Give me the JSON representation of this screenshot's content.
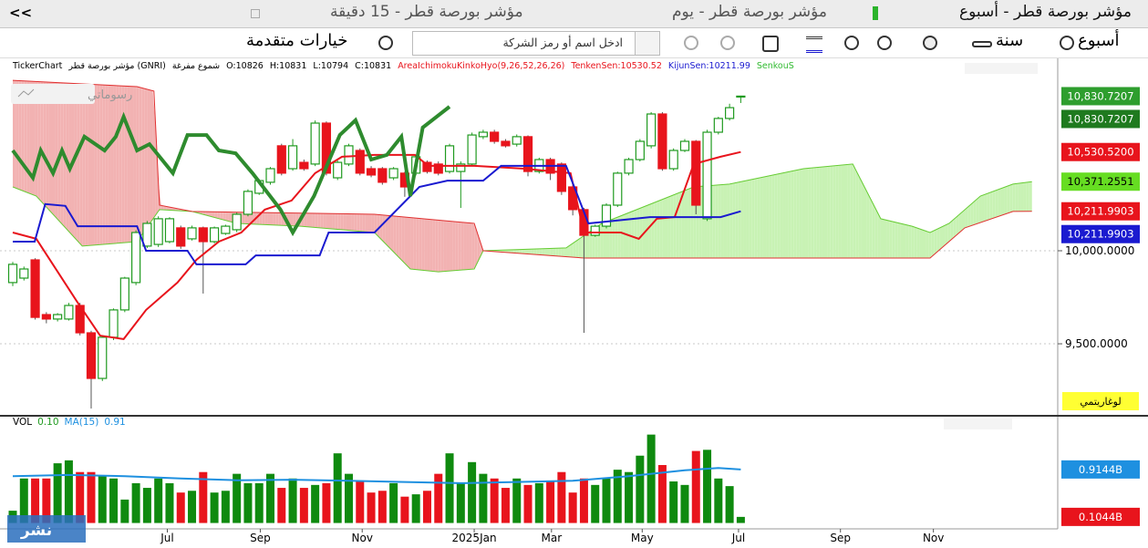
{
  "tabs": {
    "collapse": "<<",
    "items": [
      "مؤشر بورصة قطر - 15 دقيقة",
      "مؤشر بورصة قطر - يوم",
      "مؤشر بورصة قطر - أسبوع"
    ]
  },
  "toolbar": {
    "advanced": "خيارات متقدمة",
    "search_placeholder": "ادخل اسم أو رمز الشركة",
    "year": "سنة",
    "week": "أسبوع"
  },
  "watermark": "نشر",
  "chart_data": [
    {
      "type": "candlestick",
      "info": [
        {
          "text": "TickerChart",
          "color": "#000000"
        },
        {
          "text": "مؤشر بورصة قطر (GNRI)",
          "color": "#000000"
        },
        {
          "text": "شموع مفرغة",
          "color": "#000000"
        },
        {
          "text": "O:10826",
          "color": "#000000"
        },
        {
          "text": "H:10831",
          "color": "#000000"
        },
        {
          "text": "L:10794",
          "color": "#000000"
        },
        {
          "text": "C:10831",
          "color": "#000000"
        },
        {
          "text": "AreaIchimokuKinkoHyo(9,26,52,26,26)",
          "color": "#e8141c"
        },
        {
          "text": "TenkenSen:10530.52",
          "color": "#e8141c"
        },
        {
          "text": "KijunSen:10211.99",
          "color": "#1a1ad0"
        },
        {
          "text": "SenkouS",
          "color": "#33bb33"
        }
      ],
      "drawings_label": "رسوماتي",
      "scale_mode": "لوغاريتمي",
      "xlim": [
        -1.14,
        93.3
      ],
      "ylim": [
        9118,
        10931
      ],
      "xticks": [
        {
          "value": 13.8,
          "label": "Jul"
        },
        {
          "value": 22.1,
          "label": "Sep"
        },
        {
          "value": 31.2,
          "label": "Nov"
        },
        {
          "value": 41.2,
          "label": "2025Jan"
        },
        {
          "value": 48.1,
          "label": "Mar"
        },
        {
          "value": 56.2,
          "label": "May"
        },
        {
          "value": 64.8,
          "label": "Jul"
        },
        {
          "value": 73.9,
          "label": "Sep"
        },
        {
          "value": 82.2,
          "label": "Nov"
        }
      ],
      "yticks": [
        {
          "value": 10000,
          "label": "10,000.0000"
        },
        {
          "value": 9500,
          "label": "9,500.0000"
        }
      ],
      "grid": true,
      "up_color": "#1f9a1f",
      "down_color": "#e8141c",
      "open": [
        9829,
        9853,
        9951,
        9657,
        9633,
        9633,
        9706,
        9559,
        9314,
        9535,
        9682,
        9829,
        10025,
        10034,
        10049,
        10123,
        10064,
        10123,
        10049,
        10093,
        10113,
        10196,
        10309,
        10368,
        10564,
        10441,
        10475,
        10466,
        10686,
        10392,
        10466,
        10539,
        10441,
        10441,
        10392,
        10417,
        10417,
        10475,
        10466,
        10426,
        10426,
        10466,
        10613,
        10637,
        10588,
        10573,
        10613,
        10426,
        10490,
        10466,
        10343,
        10221,
        10083,
        10132,
        10245,
        10417,
        10490,
        10564,
        10735,
        10441,
        10539,
        10588,
        10172,
        10637,
        10711,
        10826
      ],
      "high": [
        9940,
        9915,
        9960,
        9670,
        9665,
        9720,
        9720,
        9570,
        9545,
        9690,
        9860,
        10110,
        10160,
        10185,
        10180,
        10135,
        10135,
        10130,
        10130,
        10140,
        10205,
        10330,
        10385,
        10450,
        10575,
        10600,
        10490,
        10700,
        10695,
        10485,
        10575,
        10550,
        10455,
        10450,
        10450,
        10425,
        10515,
        10485,
        10480,
        10575,
        10480,
        10635,
        10650,
        10650,
        10600,
        10625,
        10620,
        10500,
        10500,
        10475,
        10355,
        10230,
        10140,
        10255,
        10425,
        10500,
        10600,
        10745,
        10745,
        10550,
        10600,
        10595,
        10650,
        10720,
        10790,
        10831
      ],
      "low": [
        9810,
        9840,
        9630,
        9610,
        9620,
        9625,
        9545,
        9152,
        9300,
        9520,
        9670,
        9815,
        10015,
        10020,
        10040,
        10010,
        10055,
        9770,
        10040,
        10085,
        10100,
        10185,
        10300,
        10355,
        10405,
        10430,
        10430,
        10455,
        10405,
        10380,
        10455,
        10405,
        10395,
        10355,
        10380,
        10290,
        10405,
        10415,
        10405,
        10415,
        10230,
        10455,
        10600,
        10575,
        10555,
        10560,
        10400,
        10415,
        10380,
        10300,
        10190,
        9559,
        10075,
        10120,
        10235,
        10405,
        10480,
        10550,
        10430,
        10430,
        10530,
        10196,
        10160,
        10625,
        10700,
        10794
      ],
      "close": [
        9927,
        9902,
        9642,
        9633,
        9657,
        9706,
        9559,
        9314,
        9535,
        9682,
        9853,
        10098,
        10147,
        10172,
        10172,
        10025,
        10123,
        10049,
        10123,
        10132,
        10196,
        10319,
        10377,
        10441,
        10417,
        10564,
        10441,
        10686,
        10417,
        10475,
        10564,
        10417,
        10407,
        10368,
        10441,
        10343,
        10505,
        10426,
        10417,
        10564,
        10466,
        10622,
        10637,
        10588,
        10564,
        10613,
        10426,
        10490,
        10417,
        10319,
        10221,
        10083,
        10132,
        10245,
        10417,
        10490,
        10588,
        10735,
        10441,
        10539,
        10588,
        10245,
        10637,
        10711,
        10769,
        10831
      ],
      "cloud": {
        "up_color": "#c8f2b4",
        "down_color": "#f2b2b2"
      },
      "series": [
        {
          "color": "#66cc33",
          "width": 1,
          "x": [
            0,
            2.1,
            6.2,
            11.1,
            13.1,
            16,
            20,
            25.7,
            32.3,
            35.5,
            38,
            41.2,
            42,
            49.4,
            52.6,
            60.8,
            64,
            70.6,
            75,
            77.5,
            80.3,
            81.9,
            83.6,
            86.4,
            89.3,
            91
          ],
          "values": [
            10343,
            10294,
            10025,
            10049,
            10221,
            10211,
            10147,
            10132,
            10098,
            9902,
            9887,
            9902,
            10000,
            10015,
            10147,
            10343,
            10358,
            10441,
            10466,
            10172,
            10132,
            10098,
            10147,
            10294,
            10358,
            10371.2551
          ]
        },
        {
          "color": "#e03030",
          "width": 1,
          "x": [
            0,
            11.1,
            12.6,
            13.1,
            16,
            32.3,
            41.2,
            42,
            51,
            81.9,
            85,
            89.3,
            91
          ],
          "values": [
            10916,
            10882,
            10858,
            10245,
            10211,
            10196,
            10147,
            10000,
            9961,
            9961,
            10123,
            10211,
            10211.9903
          ]
        },
        {
          "color": "#e8141c",
          "width": 2,
          "x": [
            0,
            2.1,
            5.7,
            7.8,
            9.9,
            11.9,
            14.7,
            16.4,
            18.4,
            20.4,
            22.5,
            24.9,
            27,
            29.4,
            32.3,
            35.9,
            37.1,
            41.2,
            45.7,
            49.8,
            51,
            54.3,
            55.9,
            57.5,
            59.1,
            60.8,
            63.2,
            65
          ],
          "values": [
            10098,
            10064,
            9730,
            9544,
            9525,
            9682,
            9829,
            9951,
            10049,
            10098,
            10221,
            10270,
            10417,
            10505,
            10515,
            10515,
            10456,
            10456,
            10441,
            10417,
            10098,
            10098,
            10064,
            10172,
            10181,
            10466,
            10505,
            10530.52
          ]
        },
        {
          "color": "#1a1ad0",
          "width": 2,
          "x": [
            0,
            1.95,
            2.9,
            4.7,
            5.8,
            11.1,
            11.9,
            15.6,
            16.4,
            20.8,
            21.7,
            27.4,
            28.2,
            32.3,
            36.3,
            38.8,
            42,
            43.6,
            49.4,
            51.4,
            56.9,
            63.2,
            65
          ],
          "values": [
            10049,
            10049,
            10251,
            10241,
            10132,
            10132,
            10000,
            10000,
            9927,
            9927,
            9975,
            9975,
            10098,
            10098,
            10343,
            10377,
            10377,
            10456,
            10456,
            10147,
            10181,
            10181,
            10211.99
          ]
        },
        {
          "color": "#2e8b2e",
          "width": 4,
          "x": [
            0,
            1.8,
            2.5,
            3.6,
            4.4,
            5.1,
            6.4,
            8.2,
            9.2,
            9.9,
            11.1,
            12.2,
            14.3,
            15.6,
            17.3,
            18.4,
            19.9,
            21.4,
            23.9,
            25,
            26.9,
            29.2,
            30.6,
            32,
            33.4,
            34.7,
            35.5,
            36.6,
            39
          ],
          "values": [
            10539,
            10392,
            10539,
            10417,
            10539,
            10441,
            10613,
            10539,
            10613,
            10720,
            10539,
            10573,
            10417,
            10622,
            10622,
            10539,
            10524,
            10417,
            10221,
            10098,
            10294,
            10622,
            10701,
            10490,
            10515,
            10613,
            10294,
            10662,
            10774
          ]
        }
      ],
      "price_tags": [
        {
          "value": 10830.7207,
          "label": "10,830.7207",
          "color": "#2e9e2e",
          "text_color": "#ffffff"
        },
        {
          "value": 10830.7207,
          "label": "10,830.7207",
          "color": "#1f7a1f",
          "text_color": "#ffffff"
        },
        {
          "value": 10530.52,
          "label": "10,530.5200",
          "color": "#e8141c",
          "text_color": "#ffffff"
        },
        {
          "value": 10371.2551,
          "label": "10,371.2551",
          "color": "#66dd22",
          "text_color": "#000000"
        },
        {
          "value": 10211.9903,
          "label": "10,211.9903",
          "color": "#e8141c",
          "text_color": "#ffffff"
        },
        {
          "value": 10211.9903,
          "label": "10,211.9903",
          "color": "#1a1ad0",
          "text_color": "#ffffff"
        }
      ]
    },
    {
      "type": "volume",
      "legend": [
        {
          "text": "VOL",
          "color": "#000000"
        },
        {
          "text": "0.10",
          "color": "#1f9a1f"
        },
        {
          "text": "MA(15)",
          "color": "#1e90e0"
        },
        {
          "text": "0.91",
          "color": "#1e90e0"
        }
      ],
      "ylim": [
        -0.1,
        1.8
      ],
      "up_color": "#0f8a0f",
      "down_color": "#e8141c",
      "values": [
        0.21,
        0.76,
        0.76,
        0.76,
        1.02,
        1.07,
        0.87,
        0.87,
        0.81,
        0.76,
        0.4,
        0.68,
        0.6,
        0.76,
        0.68,
        0.52,
        0.55,
        0.87,
        0.52,
        0.55,
        0.84,
        0.68,
        0.68,
        0.84,
        0.6,
        0.76,
        0.6,
        0.65,
        0.68,
        1.19,
        0.84,
        0.71,
        0.52,
        0.55,
        0.68,
        0.45,
        0.49,
        0.55,
        0.84,
        1.19,
        0.68,
        1.04,
        0.84,
        0.76,
        0.6,
        0.76,
        0.65,
        0.68,
        0.71,
        0.87,
        0.52,
        0.76,
        0.65,
        0.76,
        0.91,
        0.87,
        1.15,
        1.51,
        0.99,
        0.71,
        0.65,
        1.23,
        1.25,
        0.76,
        0.63,
        0.1044
      ],
      "ma": {
        "color": "#1e90e0",
        "x": [
          0,
          5,
          10,
          15,
          20,
          25,
          30,
          35,
          40,
          45,
          50,
          55,
          60,
          63,
          65
        ],
        "values": [
          0.8,
          0.82,
          0.8,
          0.76,
          0.73,
          0.74,
          0.72,
          0.7,
          0.68,
          0.7,
          0.72,
          0.8,
          0.9,
          0.94,
          0.9144
        ]
      },
      "price_tags": [
        {
          "value": 0.9144,
          "label": "0.9144B",
          "color": "#1e90e0",
          "text_color": "#ffffff"
        },
        {
          "value": 0.1044,
          "label": "0.1044B",
          "color": "#e8141c",
          "text_color": "#ffffff"
        }
      ]
    }
  ]
}
